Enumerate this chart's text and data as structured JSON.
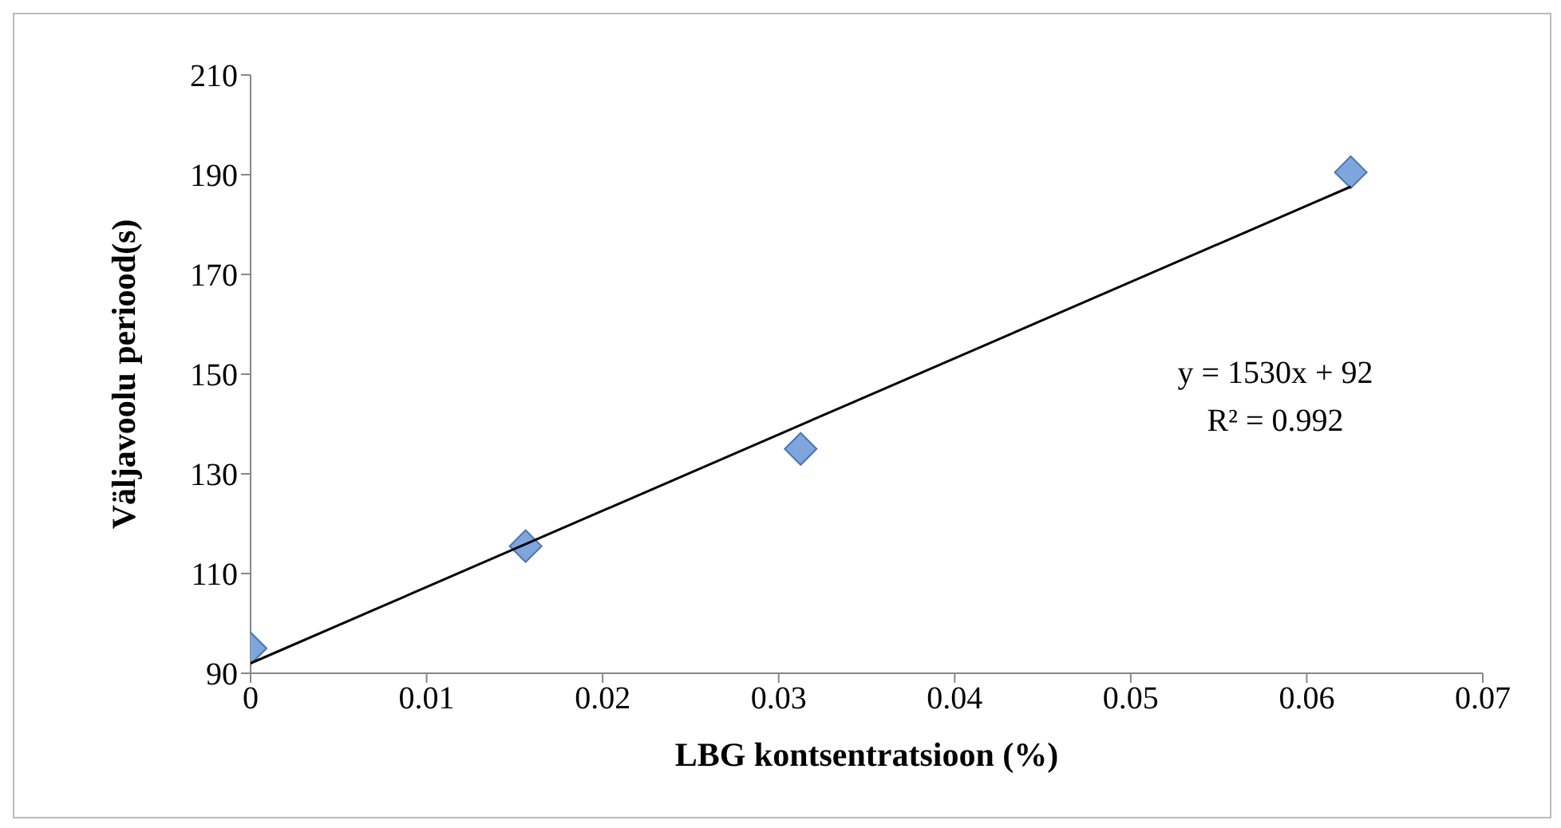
{
  "chart_data": {
    "type": "scatter",
    "xlabel": "LBG kontsentratsioon (%)",
    "ylabel": "Väljavoolu periood(s)",
    "series": [
      {
        "color": "#7ea6dc",
        "marker": "diamond",
        "x": [
          0,
          0.015625,
          0.03125,
          0.0625
        ],
        "values": [
          95,
          115.5,
          135,
          190.5
        ]
      },
      {
        "type": "line",
        "color": "#000000",
        "x": [
          0,
          0.0625
        ],
        "values": [
          92,
          187.6
        ]
      }
    ],
    "xlim": [
      0,
      0.07
    ],
    "xticks": [
      0,
      0.01,
      0.02,
      0.03,
      0.04,
      0.05,
      0.06,
      0.07
    ],
    "ylim": [
      90,
      210
    ],
    "yticks": [
      90,
      110,
      130,
      150,
      170,
      190,
      210
    ],
    "annotations": [
      "y = 1530x + 92",
      "R² = 0.992"
    ]
  }
}
